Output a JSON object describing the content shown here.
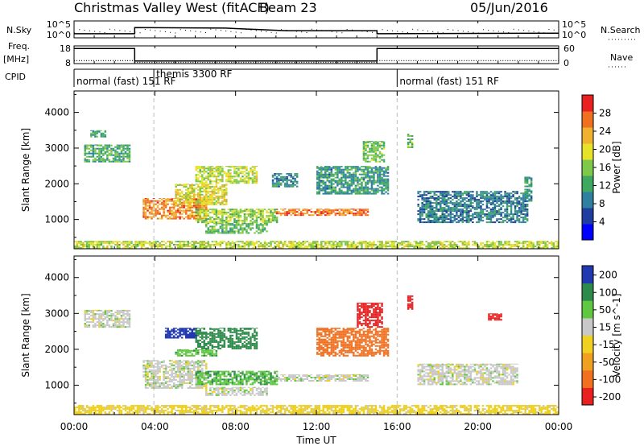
{
  "header": {
    "title": "Christmas Valley West (fitACF)",
    "beam": "Beam 23",
    "date": "05/Jun/2016"
  },
  "chart_data": [
    {
      "type": "line",
      "panel": "noise",
      "left_label": "N.Sky",
      "right_label": "N.Search",
      "left_ticks": [
        "10^5",
        "10^0"
      ],
      "right_ticks": [
        "10^5",
        "10^0"
      ],
      "x_hours": [
        0,
        3.0,
        3.0,
        7.5,
        8.0,
        10.5,
        15.0,
        15.0,
        24
      ],
      "n_sky_level": [
        0.25,
        0.25,
        0.85,
        0.8,
        0.75,
        0.55,
        0.55,
        0.25,
        0.3
      ]
    },
    {
      "type": "line",
      "panel": "frequency",
      "left_label": "Freq.",
      "left_unit": "[MHz]",
      "right_label": "Nave",
      "left_ticks": [
        "18",
        "8"
      ],
      "right_ticks": [
        "60",
        "0"
      ],
      "segments": [
        {
          "x_start": 0,
          "x_end": 3.0,
          "freq_mhz": 16.5,
          "nave": 10
        },
        {
          "x_start": 3.0,
          "x_end": 15.0,
          "freq_mhz": 9.5,
          "nave": 4
        },
        {
          "x_start": 15.0,
          "x_end": 24,
          "freq_mhz": 16.5,
          "nave": 10
        }
      ]
    },
    {
      "type": "table",
      "panel": "cpid",
      "label": "CPID",
      "modes": [
        {
          "start_hour": 0,
          "text": "normal (fast) 151 RF"
        },
        {
          "start_hour": 3.95,
          "text": "themis 3300 RF"
        },
        {
          "start_hour": 16.0,
          "text": "normal (fast) 151 RF"
        }
      ]
    },
    {
      "type": "heatmap",
      "panel": "power",
      "ylabel": "Slant Range [km]",
      "yticks": [
        1000,
        2000,
        3000,
        4000
      ],
      "ylim": [
        180,
        4600
      ],
      "colorbar_label": "Power [dB]",
      "colorbar_ticks": [
        4,
        8,
        12,
        16,
        20,
        24,
        28
      ],
      "colorbar_range": [
        0,
        32
      ],
      "colors": [
        "#0000ff",
        "#1f3da0",
        "#2e7fa0",
        "#3ea860",
        "#7ec84a",
        "#e6e22a",
        "#f0b030",
        "#f07020",
        "#e82020"
      ],
      "regions": [
        {
          "t0": 0.5,
          "t1": 2.8,
          "r0": 2600,
          "r1": 3100,
          "value": 13
        },
        {
          "t0": 0.8,
          "t1": 1.6,
          "r0": 3300,
          "r1": 3500,
          "value": 12
        },
        {
          "t0": 3.4,
          "t1": 6.5,
          "r0": 1000,
          "r1": 1600,
          "value": 25
        },
        {
          "t0": 5.0,
          "t1": 7.5,
          "r0": 1400,
          "r1": 2000,
          "value": 20
        },
        {
          "t0": 6.0,
          "t1": 9.0,
          "r0": 2000,
          "r1": 2500,
          "value": 18
        },
        {
          "t0": 6.0,
          "t1": 10.0,
          "r0": 900,
          "r1": 1300,
          "value": 17
        },
        {
          "t0": 6.5,
          "t1": 9.5,
          "r0": 600,
          "r1": 900,
          "value": 14
        },
        {
          "t0": 10.0,
          "t1": 14.5,
          "r0": 1100,
          "r1": 1300,
          "value": 26
        },
        {
          "t0": 9.8,
          "t1": 11.0,
          "r0": 1900,
          "r1": 2300,
          "value": 10
        },
        {
          "t0": 12.0,
          "t1": 15.5,
          "r0": 1700,
          "r1": 2500,
          "value": 11
        },
        {
          "t0": 14.3,
          "t1": 15.3,
          "r0": 2600,
          "r1": 3200,
          "value": 15
        },
        {
          "t0": 16.5,
          "t1": 16.8,
          "r0": 3000,
          "r1": 3400,
          "value": 14
        },
        {
          "t0": 17.0,
          "t1": 22.5,
          "r0": 900,
          "r1": 1800,
          "value": 9
        },
        {
          "t0": 22.3,
          "t1": 22.7,
          "r0": 1500,
          "r1": 2200,
          "value": 11
        },
        {
          "t0": 0.0,
          "t1": 24.0,
          "r0": 180,
          "r1": 400,
          "value": 18
        }
      ]
    },
    {
      "type": "heatmap",
      "panel": "velocity",
      "ylabel": "Slant Range [km]",
      "yticks": [
        1000,
        2000,
        3000,
        4000
      ],
      "ylim": [
        180,
        4600
      ],
      "xlabel": "Time UT",
      "xticks": [
        "00:00",
        "04:00",
        "08:00",
        "12:00",
        "16:00",
        "20:00",
        "00:00"
      ],
      "xlim": [
        0,
        24
      ],
      "colorbar_label": "Velocity [m s^-1]",
      "colorbar_ticks": [
        200,
        100,
        50,
        15,
        -15,
        -50,
        -100,
        -200
      ],
      "colors": [
        "#2038b0",
        "#2e8a4a",
        "#60c840",
        "#c8c8c8",
        "#f0d020",
        "#f0a020",
        "#f07020",
        "#e82020"
      ],
      "regions": [
        {
          "t0": 0.5,
          "t1": 2.8,
          "r0": 2600,
          "r1": 3100,
          "value": 0
        },
        {
          "t0": 3.4,
          "t1": 6.5,
          "r0": 900,
          "r1": 1700,
          "value": 0
        },
        {
          "t0": 4.5,
          "t1": 6.0,
          "r0": 2300,
          "r1": 2600,
          "value": 180
        },
        {
          "t0": 6.0,
          "t1": 9.0,
          "r0": 2000,
          "r1": 2600,
          "value": 120
        },
        {
          "t0": 5.0,
          "t1": 7.0,
          "r0": 1800,
          "r1": 2000,
          "value": 60
        },
        {
          "t0": 6.0,
          "t1": 10.0,
          "r0": 1000,
          "r1": 1400,
          "value": 70
        },
        {
          "t0": 6.5,
          "t1": 9.5,
          "r0": 700,
          "r1": 950,
          "value": 0
        },
        {
          "t0": 10.0,
          "t1": 14.5,
          "r0": 1100,
          "r1": 1300,
          "value": 0
        },
        {
          "t0": 12.0,
          "t1": 15.5,
          "r0": 1800,
          "r1": 2600,
          "value": -150
        },
        {
          "t0": 14.0,
          "t1": 15.2,
          "r0": 2600,
          "r1": 3300,
          "value": -200
        },
        {
          "t0": 16.5,
          "t1": 16.8,
          "r0": 3100,
          "r1": 3500,
          "value": -200
        },
        {
          "t0": 17.0,
          "t1": 22.0,
          "r0": 1000,
          "r1": 1600,
          "value": 0
        },
        {
          "t0": 20.5,
          "t1": 21.2,
          "r0": 2800,
          "r1": 3000,
          "value": -200
        },
        {
          "t0": 0.0,
          "t1": 24.0,
          "r0": 180,
          "r1": 450,
          "value": -30
        }
      ]
    }
  ]
}
